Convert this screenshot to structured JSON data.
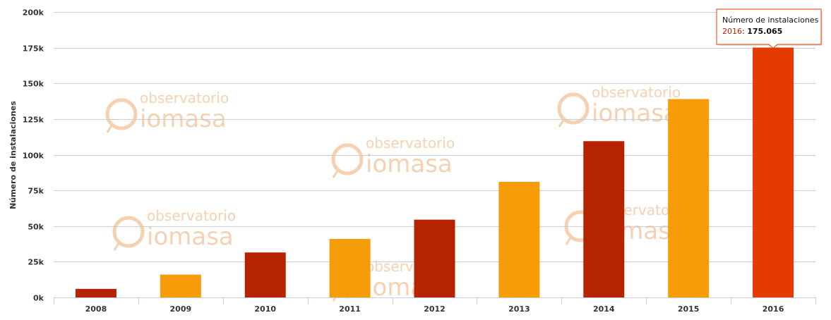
{
  "chart_data": {
    "type": "bar",
    "ylabel": "Número de instalaciones",
    "xlabel": "",
    "categories": [
      "2008",
      "2009",
      "2010",
      "2011",
      "2012",
      "2013",
      "2014",
      "2015",
      "2016"
    ],
    "values": [
      6000,
      16000,
      31500,
      41000,
      54500,
      81000,
      109500,
      139000,
      175065
    ],
    "colors": [
      "#b52300",
      "#f59c08",
      "#b52300",
      "#f59c08",
      "#b52300",
      "#f59c08",
      "#b52300",
      "#f59c08",
      "#e63b00"
    ],
    "ylim": [
      0,
      200000
    ],
    "yticks": [
      0,
      25000,
      50000,
      75000,
      100000,
      125000,
      150000,
      175000,
      200000
    ],
    "ytick_labels": [
      "0k",
      "25k",
      "50k",
      "75k",
      "100k",
      "125k",
      "150k",
      "175k",
      "200k"
    ],
    "grid": true,
    "legend": "none"
  },
  "tooltip": {
    "title": "Número de instalaciones",
    "category": "2016",
    "value_text": "175.065",
    "accent": "#b52300",
    "border": "#e63b00"
  },
  "watermark": {
    "line1": "observatorio",
    "line2": "iomasa",
    "color": "#f3c9a4"
  }
}
